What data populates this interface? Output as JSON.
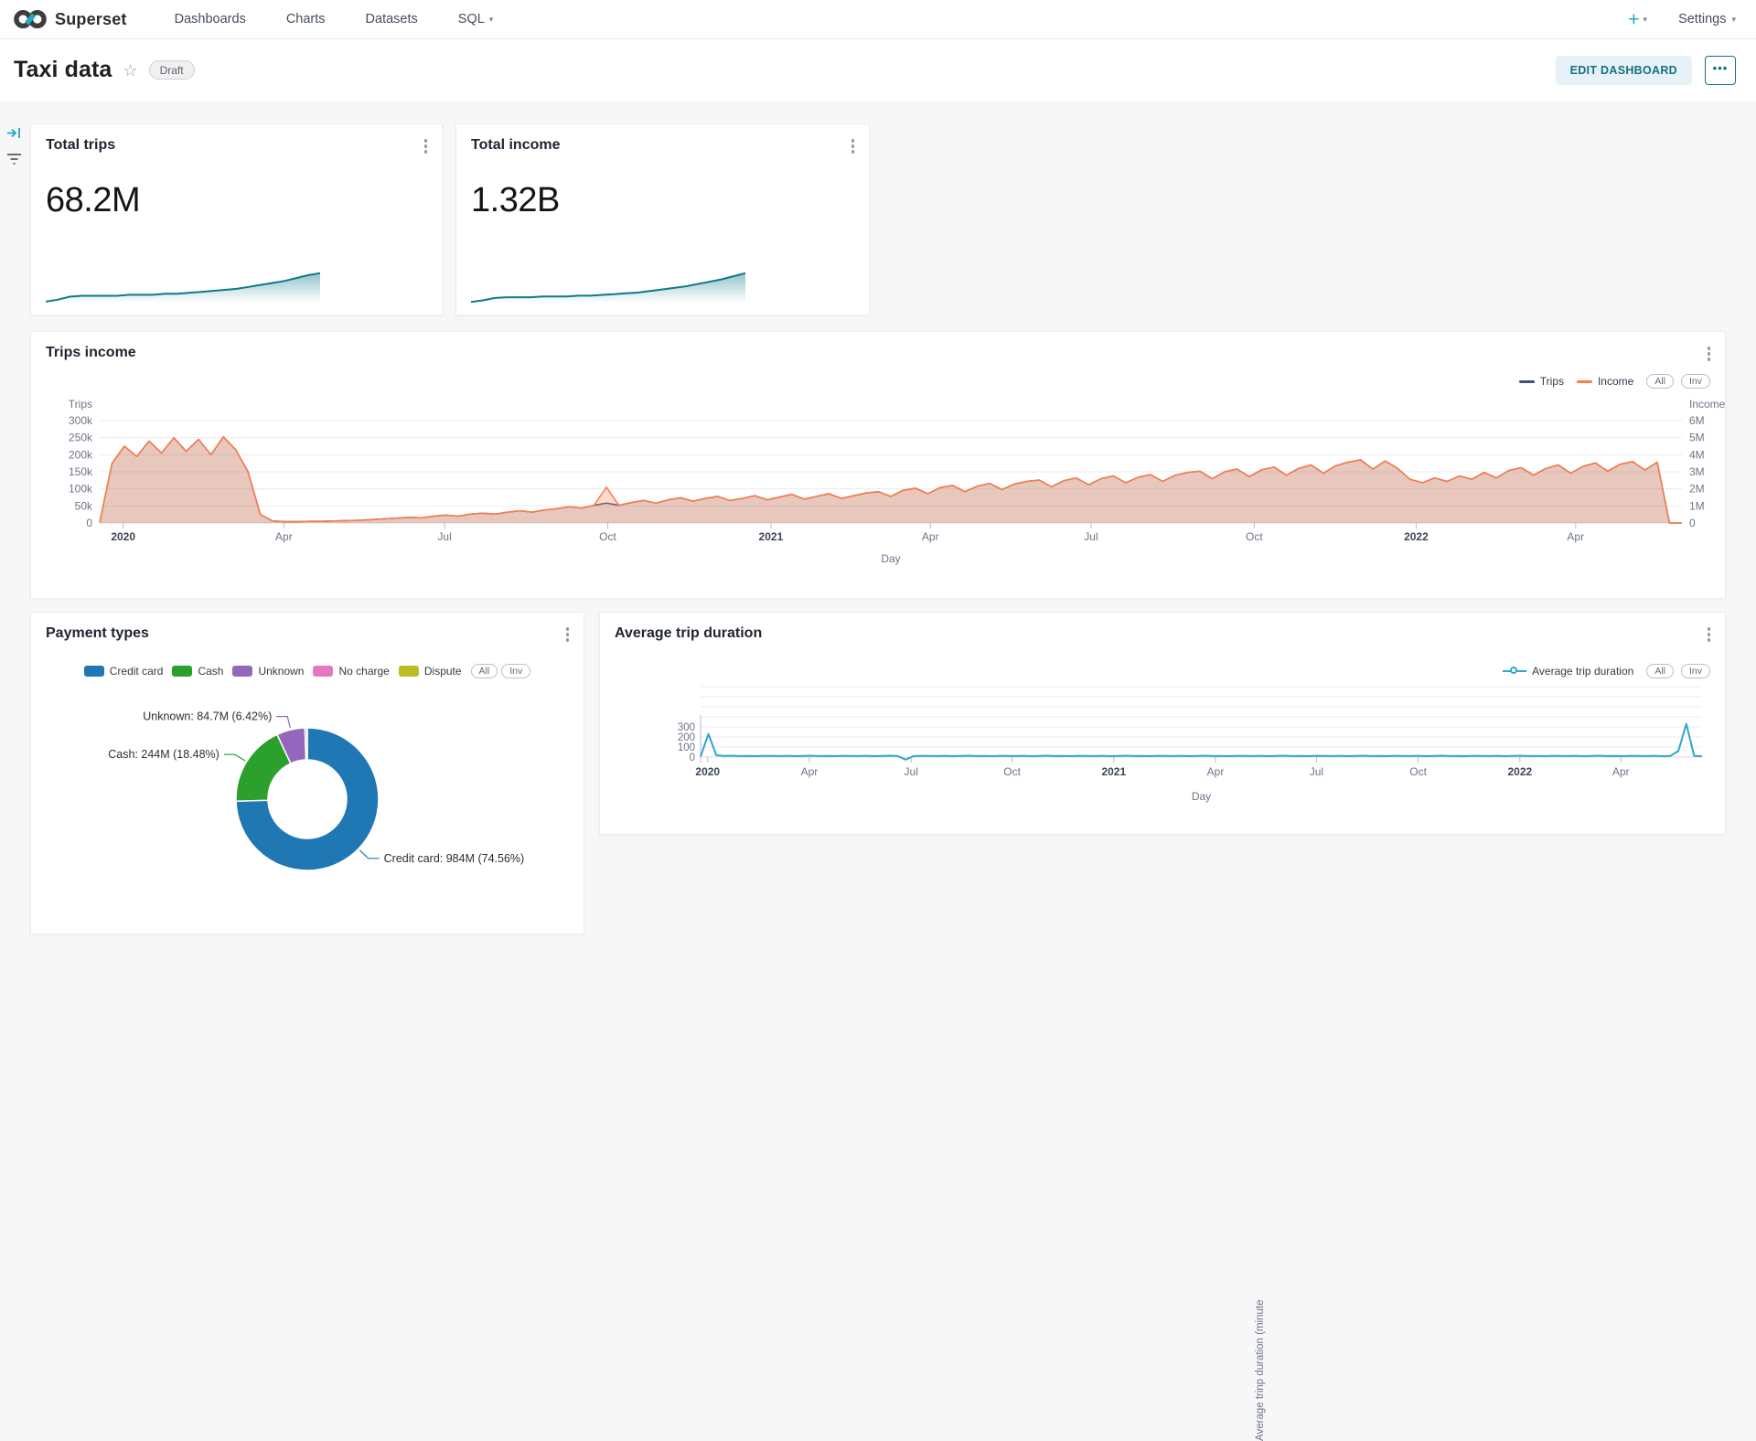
{
  "nav": {
    "brand": "Superset",
    "items": [
      {
        "label": "Dashboards",
        "caret": false
      },
      {
        "label": "Charts",
        "caret": false
      },
      {
        "label": "Datasets",
        "caret": false
      },
      {
        "label": "SQL",
        "caret": true
      }
    ],
    "plus_label": "+",
    "settings_label": "Settings"
  },
  "header": {
    "title": "Taxi data",
    "status_badge": "Draft",
    "edit_button": "EDIT DASHBOARD",
    "more_button": "•••"
  },
  "legend": {
    "all": "All",
    "inv": "Inv"
  },
  "colors": {
    "accent": "#20a7c9",
    "spark_teal": "#0e7a87",
    "trips_navy": "#454e7c",
    "income_orange": "#fc7d49",
    "avg_blue": "#2fa8c9"
  },
  "chart_data": [
    {
      "id": "total-trips",
      "type": "area",
      "title": "Total trips",
      "big_number": "68.2M",
      "color": "#0e7a87",
      "values": [
        1,
        3,
        6,
        7,
        7,
        7,
        7,
        8,
        8,
        8,
        9,
        9,
        10,
        11,
        12,
        13,
        14,
        16,
        18,
        20,
        22,
        25,
        28,
        30
      ]
    },
    {
      "id": "total-income",
      "type": "area",
      "title": "Total income",
      "big_number": "1.32B",
      "color": "#0e7a87",
      "values": [
        1,
        3,
        6,
        7,
        7,
        7,
        8,
        8,
        8,
        9,
        9,
        10,
        11,
        12,
        13,
        15,
        17,
        19,
        21,
        24,
        27,
        30,
        34,
        38
      ]
    },
    {
      "id": "trips-income",
      "type": "line",
      "title": "Trips income",
      "xlabel": "Day",
      "x_ticks": [
        {
          "label": "2020",
          "i": 1.9,
          "bold": true
        },
        {
          "label": "Apr",
          "i": 14.9
        },
        {
          "label": "Jul",
          "i": 27.9
        },
        {
          "label": "Oct",
          "i": 41.1
        },
        {
          "label": "2021",
          "i": 54.3,
          "bold": true
        },
        {
          "label": "Apr",
          "i": 67.2
        },
        {
          "label": "Jul",
          "i": 80.2
        },
        {
          "label": "Oct",
          "i": 93.4
        },
        {
          "label": "2022",
          "i": 106.5,
          "bold": true
        },
        {
          "label": "Apr",
          "i": 119.4
        }
      ],
      "left_axis": {
        "name": "Trips",
        "ticks": [
          "0",
          "50k",
          "100k",
          "150k",
          "200k",
          "250k",
          "300k"
        ],
        "max": 300
      },
      "right_axis": {
        "name": "Income",
        "ticks": [
          "0",
          "1M",
          "2M",
          "3M",
          "4M",
          "5M",
          "6M"
        ],
        "max": 6
      },
      "series": [
        {
          "name": "Trips",
          "axis": "left",
          "unit": "thousands",
          "color": "#454e7c",
          "fill": "rgba(69,78,124,0.16)",
          "values": [
            2,
            175,
            225,
            195,
            240,
            205,
            250,
            210,
            245,
            200,
            252,
            215,
            150,
            25,
            6,
            4,
            4,
            5,
            5,
            6,
            7,
            8,
            10,
            12,
            14,
            17,
            15,
            20,
            23,
            20,
            26,
            29,
            26,
            32,
            36,
            32,
            38,
            42,
            48,
            44,
            52,
            58,
            52,
            60,
            66,
            58,
            68,
            74,
            64,
            72,
            78,
            66,
            72,
            80,
            68,
            76,
            84,
            70,
            78,
            86,
            72,
            80,
            88,
            92,
            78,
            96,
            102,
            86,
            104,
            110,
            92,
            108,
            116,
            98,
            114,
            122,
            126,
            106,
            124,
            132,
            112,
            130,
            138,
            118,
            134,
            142,
            122,
            140,
            148,
            152,
            130,
            150,
            158,
            136,
            156,
            164,
            140,
            160,
            170,
            146,
            168,
            178,
            185,
            158,
            182,
            160,
            128,
            118,
            132,
            122,
            138,
            128,
            148,
            132,
            154,
            162,
            140,
            160,
            170,
            146,
            166,
            176,
            152,
            172,
            180,
            155,
            178,
            0,
            0
          ]
        },
        {
          "name": "Income",
          "axis": "right",
          "unit": "millions",
          "color": "#fc7d49",
          "fill": "rgba(252,125,73,0.28)",
          "values": [
            0.04,
            3.5,
            4.5,
            3.9,
            4.8,
            4.1,
            5.0,
            4.2,
            4.9,
            4.0,
            5.05,
            4.3,
            3.0,
            0.5,
            0.12,
            0.08,
            0.08,
            0.1,
            0.1,
            0.12,
            0.14,
            0.16,
            0.2,
            0.24,
            0.28,
            0.34,
            0.3,
            0.4,
            0.46,
            0.4,
            0.52,
            0.58,
            0.52,
            0.64,
            0.72,
            0.64,
            0.76,
            0.84,
            0.96,
            0.88,
            1.04,
            2.1,
            1.04,
            1.2,
            1.32,
            1.16,
            1.36,
            1.48,
            1.28,
            1.44,
            1.56,
            1.32,
            1.44,
            1.6,
            1.36,
            1.52,
            1.68,
            1.4,
            1.56,
            1.72,
            1.44,
            1.6,
            1.76,
            1.84,
            1.56,
            1.92,
            2.04,
            1.72,
            2.08,
            2.2,
            1.84,
            2.16,
            2.32,
            1.96,
            2.28,
            2.44,
            2.52,
            2.12,
            2.48,
            2.64,
            2.24,
            2.6,
            2.76,
            2.36,
            2.68,
            2.84,
            2.44,
            2.8,
            2.96,
            3.04,
            2.6,
            3.0,
            3.16,
            2.72,
            3.12,
            3.28,
            2.8,
            3.2,
            3.4,
            2.92,
            3.36,
            3.56,
            3.7,
            3.16,
            3.64,
            3.2,
            2.56,
            2.36,
            2.64,
            2.44,
            2.76,
            2.56,
            2.96,
            2.64,
            3.08,
            3.24,
            2.8,
            3.2,
            3.4,
            2.92,
            3.32,
            3.52,
            3.04,
            3.44,
            3.6,
            3.1,
            3.56,
            0,
            0
          ]
        }
      ]
    },
    {
      "id": "payment-types",
      "type": "pie",
      "title": "Payment types",
      "slices": [
        {
          "name": "Credit card",
          "color": "#1f77b4",
          "pct": 74.56,
          "value": "984M",
          "label": "Credit card: 984M (74.56%)"
        },
        {
          "name": "Cash",
          "color": "#2ca02c",
          "pct": 18.48,
          "value": "244M",
          "label": "Cash: 244M (18.48%)"
        },
        {
          "name": "Unknown",
          "color": "#9467bd",
          "pct": 6.42,
          "value": "84.7M",
          "label": "Unknown: 84.7M (6.42%)"
        },
        {
          "name": "No charge",
          "color": "#e377c2",
          "pct": 0.45,
          "value": "",
          "label": ""
        },
        {
          "name": "Dispute",
          "color": "#bcbd22",
          "pct": 0.09,
          "value": "",
          "label": ""
        }
      ]
    },
    {
      "id": "avg-trip-duration",
      "type": "line",
      "title": "Average trip duration",
      "xlabel": "Day",
      "y_label": "Average trinp duration (minute",
      "y_ticks": [
        "0",
        "100",
        "200",
        "300"
      ],
      "y_max": 700,
      "x_ticks": [
        {
          "label": "2020",
          "i": 0.9,
          "bold": true
        },
        {
          "label": "Apr",
          "i": 13.8
        },
        {
          "label": "Jul",
          "i": 26.7
        },
        {
          "label": "Oct",
          "i": 39.5
        },
        {
          "label": "2021",
          "i": 52.4,
          "bold": true
        },
        {
          "label": "Apr",
          "i": 65.3
        },
        {
          "label": "Jul",
          "i": 78.1
        },
        {
          "label": "Oct",
          "i": 91.0
        },
        {
          "label": "2022",
          "i": 103.9,
          "bold": true
        },
        {
          "label": "Apr",
          "i": 116.7
        }
      ],
      "series": [
        {
          "name": "Average trip duration",
          "color": "#2fa8c9",
          "values": [
            5,
            230,
            18,
            12,
            14,
            10,
            12,
            9,
            13,
            11,
            10,
            13,
            9,
            12,
            14,
            10,
            12,
            9,
            13,
            11,
            10,
            13,
            9,
            12,
            14,
            10,
            -25,
            9,
            13,
            11,
            10,
            13,
            9,
            12,
            14,
            10,
            12,
            9,
            13,
            11,
            10,
            13,
            9,
            12,
            14,
            10,
            12,
            9,
            13,
            11,
            10,
            13,
            9,
            12,
            14,
            10,
            12,
            9,
            13,
            11,
            10,
            13,
            9,
            12,
            14,
            10,
            12,
            9,
            13,
            11,
            10,
            13,
            9,
            12,
            14,
            10,
            12,
            9,
            13,
            11,
            10,
            13,
            9,
            12,
            14,
            10,
            12,
            9,
            13,
            11,
            10,
            13,
            9,
            12,
            14,
            10,
            12,
            9,
            13,
            11,
            10,
            13,
            9,
            12,
            14,
            10,
            12,
            9,
            13,
            11,
            10,
            13,
            9,
            12,
            14,
            10,
            12,
            9,
            13,
            11,
            10,
            13,
            9,
            12,
            60,
            330,
            12,
            9
          ]
        }
      ]
    }
  ]
}
